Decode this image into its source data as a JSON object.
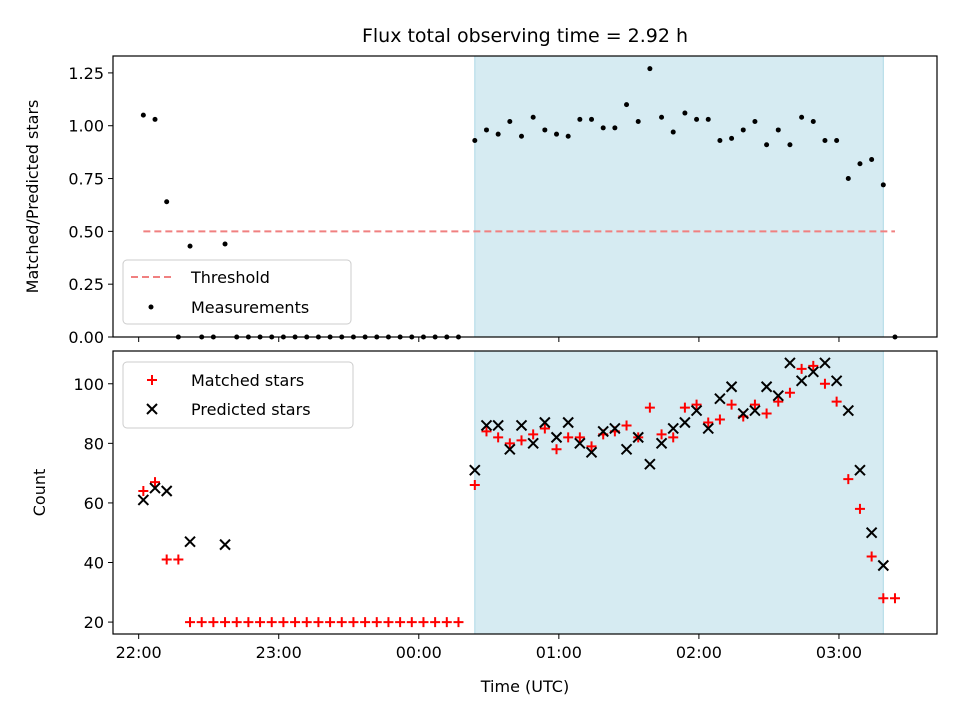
{
  "chart_data": [
    {
      "type": "scatter",
      "title": "Flux total observing time = 2.92 h",
      "ylabel": "Matched/Predicted stars",
      "xlabel": "",
      "ylim": [
        0,
        1.33
      ],
      "yticks": [
        "0.00",
        "0.25",
        "0.50",
        "0.75",
        "1.00",
        "1.25"
      ],
      "threshold": {
        "name": "Threshold",
        "value": 0.5,
        "color": "#f08080",
        "x_start": "22:02",
        "x_end": "03:24"
      },
      "shaded_span": {
        "start": "00:24",
        "end": "03:19",
        "color": "#add8e6"
      },
      "series": [
        {
          "name": "Measurements",
          "color": "#000000",
          "points": [
            [
              "22:02",
              1.05
            ],
            [
              "22:07",
              1.03
            ],
            [
              "22:12",
              0.64
            ],
            [
              "22:17",
              0.0
            ],
            [
              "22:22",
              0.43
            ],
            [
              "22:27",
              0.0
            ],
            [
              "22:32",
              0.0
            ],
            [
              "22:37",
              0.44
            ],
            [
              "22:42",
              0.0
            ],
            [
              "22:47",
              0.0
            ],
            [
              "22:52",
              0.0
            ],
            [
              "22:57",
              0.0
            ],
            [
              "23:02",
              0.0
            ],
            [
              "23:07",
              0.0
            ],
            [
              "23:12",
              0.0
            ],
            [
              "23:17",
              0.0
            ],
            [
              "23:22",
              0.0
            ],
            [
              "23:27",
              0.0
            ],
            [
              "23:32",
              0.0
            ],
            [
              "23:37",
              0.0
            ],
            [
              "23:42",
              0.0
            ],
            [
              "23:47",
              0.0
            ],
            [
              "23:52",
              0.0
            ],
            [
              "23:57",
              0.0
            ],
            [
              "00:02",
              0.0
            ],
            [
              "00:07",
              0.0
            ],
            [
              "00:12",
              0.0
            ],
            [
              "00:17",
              0.0
            ],
            [
              "00:24",
              0.93
            ],
            [
              "00:29",
              0.98
            ],
            [
              "00:34",
              0.96
            ],
            [
              "00:39",
              1.02
            ],
            [
              "00:44",
              0.95
            ],
            [
              "00:49",
              1.04
            ],
            [
              "00:54",
              0.98
            ],
            [
              "00:59",
              0.96
            ],
            [
              "01:04",
              0.95
            ],
            [
              "01:09",
              1.03
            ],
            [
              "01:14",
              1.03
            ],
            [
              "01:19",
              0.99
            ],
            [
              "01:24",
              0.99
            ],
            [
              "01:29",
              1.1
            ],
            [
              "01:34",
              1.02
            ],
            [
              "01:39",
              1.27
            ],
            [
              "01:44",
              1.04
            ],
            [
              "01:49",
              0.97
            ],
            [
              "01:54",
              1.06
            ],
            [
              "01:59",
              1.03
            ],
            [
              "02:04",
              1.03
            ],
            [
              "02:09",
              0.93
            ],
            [
              "02:14",
              0.94
            ],
            [
              "02:19",
              0.98
            ],
            [
              "02:24",
              1.02
            ],
            [
              "02:29",
              0.91
            ],
            [
              "02:34",
              0.98
            ],
            [
              "02:39",
              0.91
            ],
            [
              "02:44",
              1.04
            ],
            [
              "02:49",
              1.02
            ],
            [
              "02:54",
              0.93
            ],
            [
              "02:59",
              0.93
            ],
            [
              "03:04",
              0.75
            ],
            [
              "03:09",
              0.82
            ],
            [
              "03:14",
              0.84
            ],
            [
              "03:19",
              0.72
            ],
            [
              "03:24",
              0.0
            ]
          ]
        }
      ],
      "legend": {
        "placement": "lower-left"
      }
    },
    {
      "type": "scatter",
      "title": "",
      "ylabel": "Count",
      "xlabel": "Time (UTC)",
      "ylim": [
        16,
        111
      ],
      "yticks": [
        "20",
        "40",
        "60",
        "80",
        "100"
      ],
      "xticks": [
        "22:00",
        "23:00",
        "00:00",
        "01:00",
        "02:00",
        "03:00"
      ],
      "shaded_span": {
        "start": "00:24",
        "end": "03:19",
        "color": "#add8e6"
      },
      "series": [
        {
          "name": "Matched stars",
          "color": "#ff0000",
          "marker": "plus",
          "points": [
            [
              "22:02",
              64
            ],
            [
              "22:07",
              67
            ],
            [
              "22:12",
              41
            ],
            [
              "22:17",
              41
            ],
            [
              "22:22",
              20
            ],
            [
              "22:27",
              20
            ],
            [
              "22:32",
              20
            ],
            [
              "22:37",
              20
            ],
            [
              "22:42",
              20
            ],
            [
              "22:47",
              20
            ],
            [
              "22:52",
              20
            ],
            [
              "22:57",
              20
            ],
            [
              "23:02",
              20
            ],
            [
              "23:07",
              20
            ],
            [
              "23:12",
              20
            ],
            [
              "23:17",
              20
            ],
            [
              "23:22",
              20
            ],
            [
              "23:27",
              20
            ],
            [
              "23:32",
              20
            ],
            [
              "23:37",
              20
            ],
            [
              "23:42",
              20
            ],
            [
              "23:47",
              20
            ],
            [
              "23:52",
              20
            ],
            [
              "23:57",
              20
            ],
            [
              "00:02",
              20
            ],
            [
              "00:07",
              20
            ],
            [
              "00:12",
              20
            ],
            [
              "00:17",
              20
            ],
            [
              "00:24",
              66
            ],
            [
              "00:29",
              84
            ],
            [
              "00:34",
              82
            ],
            [
              "00:39",
              80
            ],
            [
              "00:44",
              81
            ],
            [
              "00:49",
              83
            ],
            [
              "00:54",
              85
            ],
            [
              "00:59",
              78
            ],
            [
              "01:04",
              82
            ],
            [
              "01:09",
              82
            ],
            [
              "01:14",
              79
            ],
            [
              "01:19",
              83
            ],
            [
              "01:24",
              84
            ],
            [
              "01:29",
              86
            ],
            [
              "01:34",
              82
            ],
            [
              "01:39",
              92
            ],
            [
              "01:44",
              83
            ],
            [
              "01:49",
              82
            ],
            [
              "01:54",
              92
            ],
            [
              "01:59",
              93
            ],
            [
              "02:04",
              87
            ],
            [
              "02:09",
              88
            ],
            [
              "02:14",
              93
            ],
            [
              "02:19",
              89
            ],
            [
              "02:24",
              93
            ],
            [
              "02:29",
              90
            ],
            [
              "02:34",
              94
            ],
            [
              "02:39",
              97
            ],
            [
              "02:44",
              105
            ],
            [
              "02:49",
              106
            ],
            [
              "02:54",
              100
            ],
            [
              "02:59",
              94
            ],
            [
              "03:04",
              68
            ],
            [
              "03:09",
              58
            ],
            [
              "03:14",
              42
            ],
            [
              "03:19",
              28
            ],
            [
              "03:24",
              28
            ]
          ]
        },
        {
          "name": "Predicted stars",
          "color": "#000000",
          "marker": "x",
          "points": [
            [
              "22:02",
              61
            ],
            [
              "22:07",
              65
            ],
            [
              "22:12",
              64
            ],
            [
              "22:22",
              47
            ],
            [
              "22:37",
              46
            ],
            [
              "00:24",
              71
            ],
            [
              "00:29",
              86
            ],
            [
              "00:34",
              86
            ],
            [
              "00:39",
              78
            ],
            [
              "00:44",
              86
            ],
            [
              "00:49",
              80
            ],
            [
              "00:54",
              87
            ],
            [
              "00:59",
              82
            ],
            [
              "01:04",
              87
            ],
            [
              "01:09",
              80
            ],
            [
              "01:14",
              77
            ],
            [
              "01:19",
              84
            ],
            [
              "01:24",
              85
            ],
            [
              "01:29",
              78
            ],
            [
              "01:34",
              82
            ],
            [
              "01:39",
              73
            ],
            [
              "01:44",
              80
            ],
            [
              "01:49",
              85
            ],
            [
              "01:54",
              87
            ],
            [
              "01:59",
              91
            ],
            [
              "02:04",
              85
            ],
            [
              "02:09",
              95
            ],
            [
              "02:14",
              99
            ],
            [
              "02:19",
              90
            ],
            [
              "02:24",
              91
            ],
            [
              "02:29",
              99
            ],
            [
              "02:34",
              96
            ],
            [
              "02:39",
              107
            ],
            [
              "02:44",
              101
            ],
            [
              "02:49",
              104
            ],
            [
              "02:54",
              107
            ],
            [
              "02:59",
              101
            ],
            [
              "03:04",
              91
            ],
            [
              "03:09",
              71
            ],
            [
              "03:14",
              50
            ],
            [
              "03:19",
              39
            ]
          ]
        }
      ],
      "legend": {
        "placement": "upper-left"
      }
    }
  ]
}
